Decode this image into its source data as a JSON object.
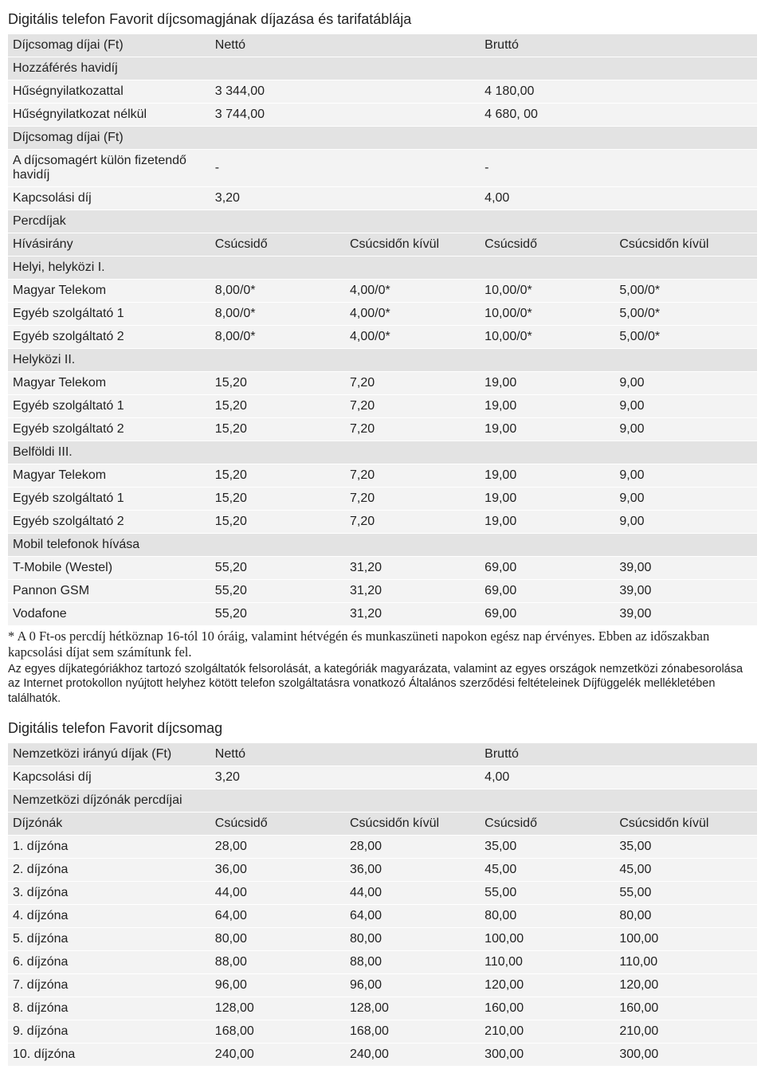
{
  "colors": {
    "header_bg": "#e3e3e3",
    "row_bg": "#f3f3f3",
    "text": "#222222",
    "page_bg": "#ffffff"
  },
  "table1": {
    "title": "Digitális telefon Favorit díjcsomagjának díjazása és tarifatáblája",
    "header_main": {
      "c0": "Díjcsomag díjai (Ft)",
      "c1": "Nettó",
      "c3": "Bruttó"
    },
    "rows_top": [
      {
        "type": "hdr",
        "c0": "Hozzáférés havidíj"
      },
      {
        "type": "row",
        "c0": "Hűségnyilatkozattal",
        "c1": "3 344,00",
        "c3": "4 180,00"
      },
      {
        "type": "row",
        "c0": "Hűségnyilatkozat nélkül",
        "c1": "3 744,00",
        "c3": "4 680, 00"
      },
      {
        "type": "hdr",
        "c0": "Díjcsomag díjai (Ft)"
      },
      {
        "type": "row",
        "c0": "A díjcsomagért külön fizetendő havidíj",
        "c1": "-",
        "c3": "-"
      },
      {
        "type": "row",
        "c0": "Kapcsolási díj",
        "c1": "3,20",
        "c3": "4,00"
      },
      {
        "type": "hdr",
        "c0": "Percdíjak"
      }
    ],
    "sub_header": {
      "c0": "Hívásirány",
      "c1": "Csúcsidő",
      "c2": "Csúcsidőn kívül",
      "c3": "Csúcsidő",
      "c4": "Csúcsidőn kívül"
    },
    "sections": [
      {
        "title": "Helyi, helyközi I.",
        "rows": [
          {
            "c0": "Magyar Telekom",
            "c1": "8,00/0*",
            "c2": "4,00/0*",
            "c3": "10,00/0*",
            "c4": "5,00/0*"
          },
          {
            "c0": "Egyéb szolgáltató 1",
            "c1": "8,00/0*",
            "c2": "4,00/0*",
            "c3": "10,00/0*",
            "c4": "5,00/0*"
          },
          {
            "c0": "Egyéb szolgáltató 2",
            "c1": "8,00/0*",
            "c2": "4,00/0*",
            "c3": "10,00/0*",
            "c4": "5,00/0*"
          }
        ]
      },
      {
        "title": "Helyközi II.",
        "rows": [
          {
            "c0": "Magyar Telekom",
            "c1": "15,20",
            "c2": "7,20",
            "c3": "19,00",
            "c4": "9,00"
          },
          {
            "c0": "Egyéb szolgáltató 1",
            "c1": "15,20",
            "c2": "7,20",
            "c3": "19,00",
            "c4": "9,00"
          },
          {
            "c0": "Egyéb szolgáltató 2",
            "c1": "15,20",
            "c2": "7,20",
            "c3": "19,00",
            "c4": "9,00"
          }
        ]
      },
      {
        "title": "Belföldi III.",
        "rows": [
          {
            "c0": "Magyar Telekom",
            "c1": "15,20",
            "c2": "7,20",
            "c3": "19,00",
            "c4": "9,00"
          },
          {
            "c0": "Egyéb szolgáltató 1",
            "c1": "15,20",
            "c2": "7,20",
            "c3": "19,00",
            "c4": "9,00"
          },
          {
            "c0": "Egyéb szolgáltató 2",
            "c1": "15,20",
            "c2": "7,20",
            "c3": "19,00",
            "c4": "9,00"
          }
        ]
      },
      {
        "title": "Mobil telefonok hívása",
        "rows": [
          {
            "c0": "T-Mobile (Westel)",
            "c1": "55,20",
            "c2": "31,20",
            "c3": "69,00",
            "c4": "39,00"
          },
          {
            "c0": "Pannon GSM",
            "c1": "55,20",
            "c2": "31,20",
            "c3": "69,00",
            "c4": "39,00"
          },
          {
            "c0": "Vodafone",
            "c1": "55,20",
            "c2": "31,20",
            "c3": "69,00",
            "c4": "39,00"
          }
        ]
      }
    ]
  },
  "note1": "* A 0 Ft-os percdíj hétköznap 16-tól 10 óráig, valamint hétvégén és munkaszüneti napokon egész nap érvényes. Ebben az időszakban kapcsolási díjat sem számítunk fel.",
  "note2": "Az egyes díjkategóriákhoz tartozó szolgáltatók felsorolását, a kategóriák magyarázata, valamint az egyes országok nemzetközi zónabesorolása az Internet protokollon nyújtott helyhez kötött telefon szolgáltatásra vonatkozó Általános szerződési feltételeinek Díjfüggelék mellékletében találhatók.",
  "table2": {
    "title": "Digitális telefon Favorit díjcsomag",
    "header_main": {
      "c0": "Nemzetközi irányú díjak (Ft)",
      "c1": "Nettó",
      "c3": "Bruttó"
    },
    "rows_top": [
      {
        "type": "row",
        "c0": "Kapcsolási díj",
        "c1": "3,20",
        "c3": "4,00"
      },
      {
        "type": "hdr",
        "c0": "Nemzetközi díjzónák percdíjai"
      }
    ],
    "sub_header": {
      "c0": "Díjzónák",
      "c1": "Csúcsidő",
      "c2": "Csúcsidőn kívül",
      "c3": "Csúcsidő",
      "c4": "Csúcsidőn kívül"
    },
    "zones": [
      {
        "c0": "1. díjzóna",
        "c1": "28,00",
        "c2": "28,00",
        "c3": "35,00",
        "c4": "35,00"
      },
      {
        "c0": "2. díjzóna",
        "c1": "36,00",
        "c2": "36,00",
        "c3": "45,00",
        "c4": "45,00"
      },
      {
        "c0": "3. díjzóna",
        "c1": "44,00",
        "c2": "44,00",
        "c3": "55,00",
        "c4": "55,00"
      },
      {
        "c0": "4. díjzóna",
        "c1": "64,00",
        "c2": "64,00",
        "c3": "80,00",
        "c4": "80,00"
      },
      {
        "c0": "5. díjzóna",
        "c1": "80,00",
        "c2": "80,00",
        "c3": "100,00",
        "c4": "100,00"
      },
      {
        "c0": "6. díjzóna",
        "c1": "88,00",
        "c2": "88,00",
        "c3": "110,00",
        "c4": "110,00"
      },
      {
        "c0": "7. díjzóna",
        "c1": "96,00",
        "c2": "96,00",
        "c3": "120,00",
        "c4": "120,00"
      },
      {
        "c0": "8. díjzóna",
        "c1": "128,00",
        "c2": "128,00",
        "c3": "160,00",
        "c4": "160,00"
      },
      {
        "c0": "9. díjzóna",
        "c1": "168,00",
        "c2": "168,00",
        "c3": "210,00",
        "c4": "210,00"
      },
      {
        "c0": "10. díjzóna",
        "c1": "240,00",
        "c2": "240,00",
        "c3": "300,00",
        "c4": "300,00"
      }
    ]
  }
}
